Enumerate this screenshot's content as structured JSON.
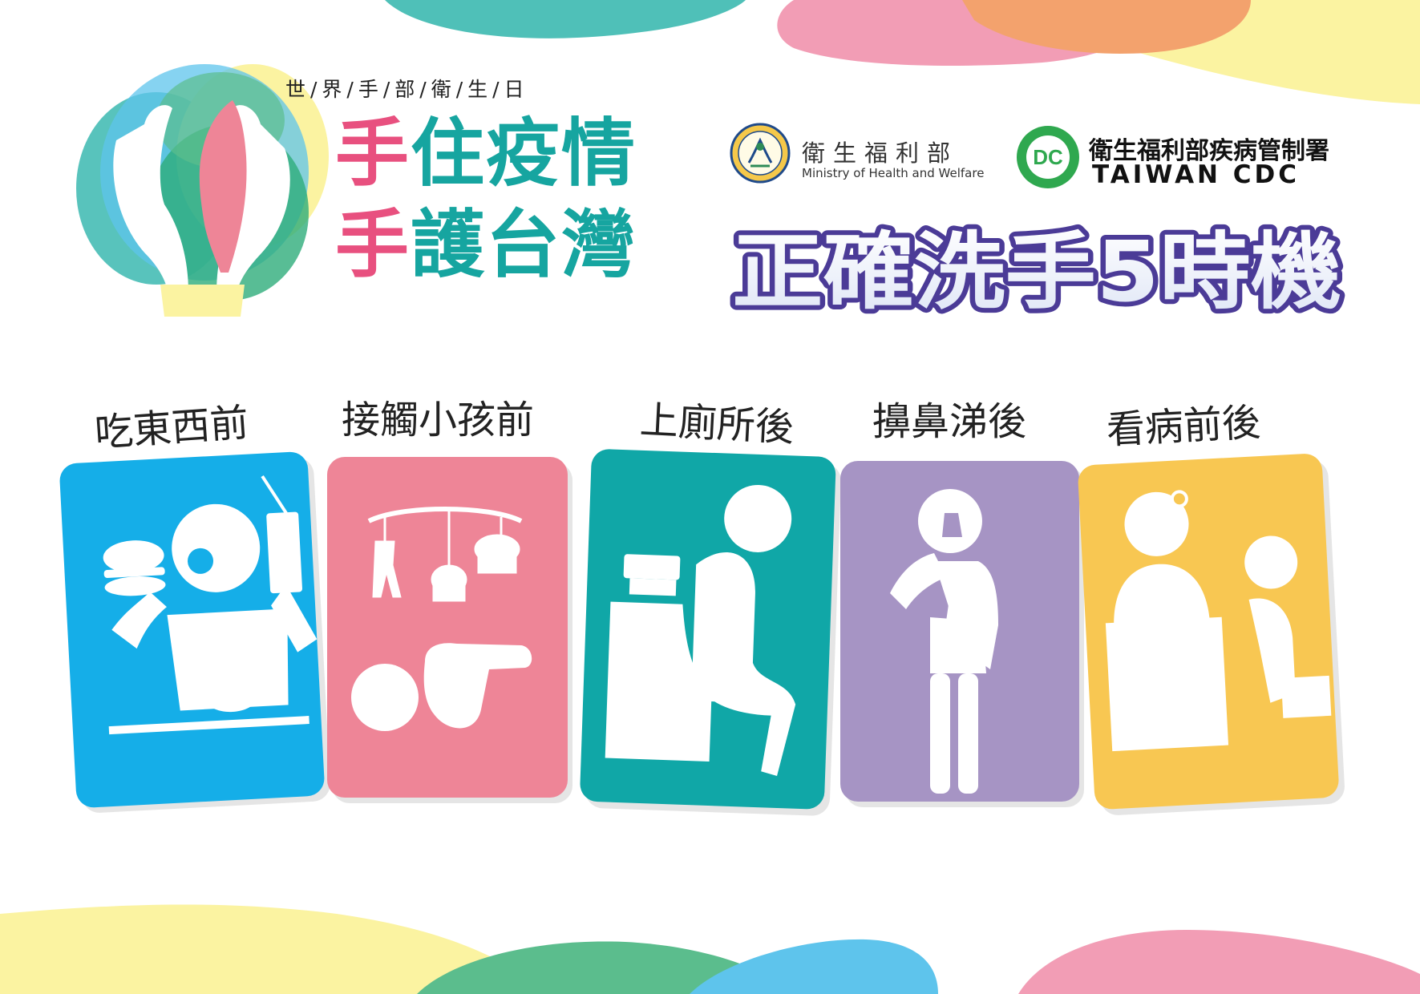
{
  "subtitle": "世/界/手/部/衛/生/日",
  "slogan": {
    "line1_a": "手",
    "line1_b": "住疫情",
    "line2_a": "手",
    "line2_b": "護台灣"
  },
  "mohw": {
    "name_zh": "衛生福利部",
    "name_en": "Ministry of Health and Welfare"
  },
  "cdc": {
    "name_zh": "衛生福利部疾病管制署",
    "name_en": "TAIWAN CDC",
    "badge_letters": "DC"
  },
  "headline": "正確洗手5時機",
  "moments": [
    {
      "label": "吃東西前",
      "color": "#15aee8",
      "icon": "eating-icon"
    },
    {
      "label": "接觸小孩前",
      "color": "#ee8597",
      "icon": "baby-icon"
    },
    {
      "label": "上廁所後",
      "color": "#10a7a7",
      "icon": "toilet-icon"
    },
    {
      "label": "擤鼻涕後",
      "color": "#a694c4",
      "icon": "nose-blowing-icon"
    },
    {
      "label": "看病前後",
      "color": "#f8c752",
      "icon": "doctor-visit-icon"
    }
  ],
  "colors": {
    "pink": "#e8507f",
    "teal": "#16a5a0",
    "headline_fill": "#ffffff",
    "headline_stroke": "#4b3b97",
    "blob_teal": "#4fc0b8",
    "blob_pink": "#f29db5",
    "blob_orange": "#f3a26d",
    "blob_yellow": "#fbf3a1",
    "blob_blue": "#5ec4ec",
    "blob_green": "#5bbd8d"
  }
}
